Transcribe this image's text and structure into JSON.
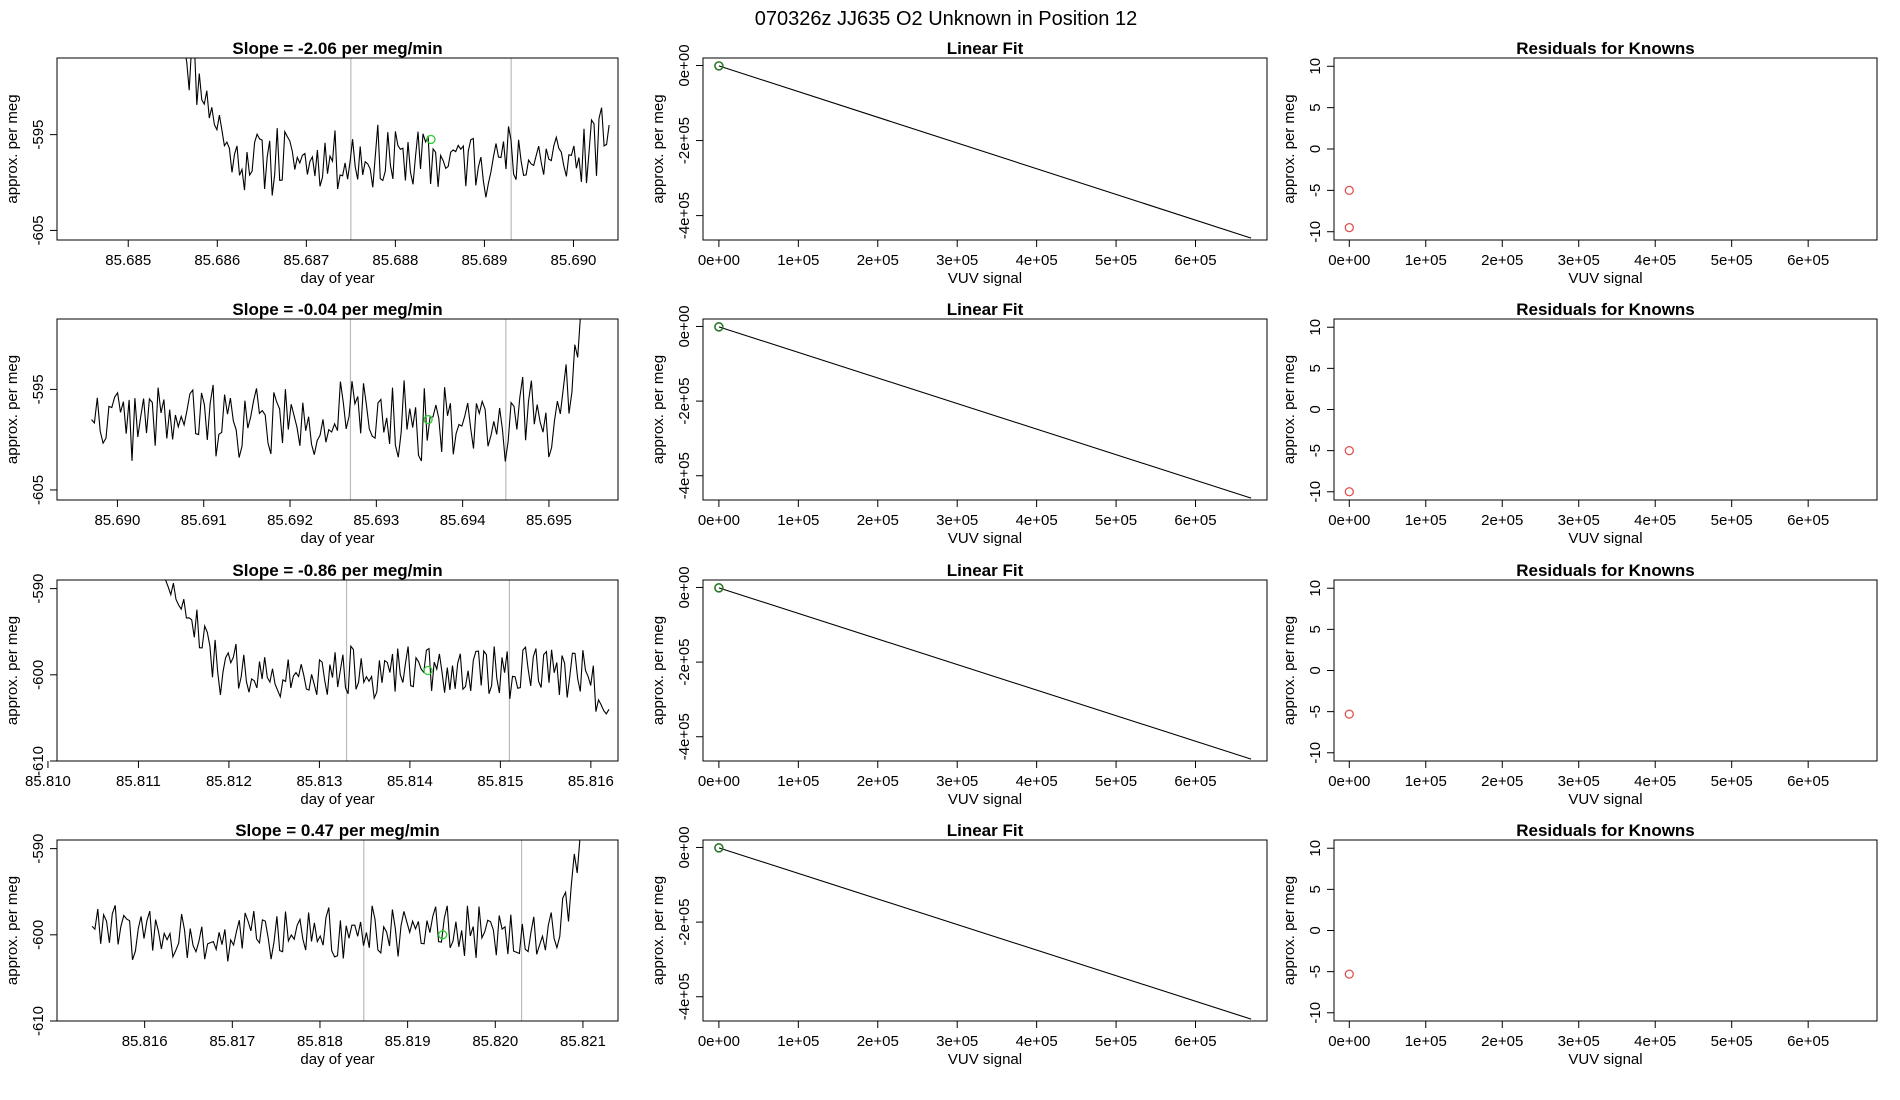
{
  "figure_title": "070326z      JJ635    O2 Unknown in Position  12",
  "colors": {
    "trace": "#000000",
    "marker_green": "#33cc33",
    "marker_red": "#e05050",
    "vline": "#bbbbbb",
    "frame": "#000000"
  },
  "chart_data": [
    {
      "type": "line",
      "row": 1,
      "panel": "time-series",
      "title": "Slope =  -2.06  per meg/min",
      "xlabel": "day of year",
      "ylabel": "approx. per meg",
      "xlim": [
        85.6842,
        85.6905
      ],
      "ylim": [
        -606,
        -587
      ],
      "xticks": [
        "85.685",
        "85.686",
        "85.687",
        "85.688",
        "85.689",
        "85.690"
      ],
      "yticks": [
        "-595",
        "-605"
      ],
      "vlines": [
        85.6875,
        85.6893
      ],
      "series_shape": {
        "start": 85.6856,
        "end": 85.6904,
        "first": -585,
        "level": -597.5,
        "noise": 3.0,
        "end_value": -594,
        "seed": 11
      },
      "marker": {
        "x": 85.6884,
        "y": -595.5
      }
    },
    {
      "type": "scatter",
      "row": 1,
      "panel": "linear-fit",
      "title": "Linear Fit",
      "xlabel": "VUV signal",
      "ylabel": "approx. per meg",
      "xlim": [
        -20000,
        690000
      ],
      "ylim": [
        -465000,
        20000
      ],
      "xticks": [
        "0e+00",
        "1e+05",
        "2e+05",
        "3e+05",
        "4e+05",
        "5e+05",
        "6e+05"
      ],
      "yticks": [
        "0e+00",
        "-2e+05",
        "-4e+05"
      ],
      "fit_line": [
        [
          0,
          -1000
        ],
        [
          670000,
          -460000
        ]
      ],
      "points": [
        [
          0,
          -1000
        ]
      ]
    },
    {
      "type": "scatter",
      "row": 1,
      "panel": "residuals",
      "title": "Residuals for Knowns",
      "xlabel": "VUV signal",
      "ylabel": "approx. per meg",
      "xlim": [
        -20000,
        690000
      ],
      "ylim": [
        -11,
        11
      ],
      "xticks": [
        "0e+00",
        "1e+05",
        "2e+05",
        "3e+05",
        "4e+05",
        "5e+05",
        "6e+05"
      ],
      "yticks": [
        "10",
        "5",
        "0",
        "-5",
        "-10"
      ],
      "points": [
        [
          0,
          -5
        ],
        [
          0,
          -9.5
        ]
      ]
    },
    {
      "type": "line",
      "row": 2,
      "panel": "time-series",
      "title": "Slope =  -0.04  per meg/min",
      "xlabel": "day of year",
      "ylabel": "approx. per meg",
      "xlim": [
        85.6893,
        85.6958
      ],
      "ylim": [
        -606,
        -588
      ],
      "xticks": [
        "85.690",
        "85.691",
        "85.692",
        "85.693",
        "85.694",
        "85.695"
      ],
      "yticks": [
        "-595",
        "-605"
      ],
      "vlines": [
        85.6927,
        85.6945
      ],
      "series_shape": {
        "start": 85.6897,
        "end": 85.6954,
        "first": -598,
        "level": -598,
        "noise": 3.2,
        "end_value": -588,
        "seed": 22
      },
      "marker": {
        "x": 85.6936,
        "y": -598
      }
    },
    {
      "type": "scatter",
      "row": 2,
      "panel": "linear-fit",
      "title": "Linear Fit",
      "xlabel": "VUV signal",
      "ylabel": "approx. per meg",
      "xlim": [
        -20000,
        690000
      ],
      "ylim": [
        -465000,
        20000
      ],
      "xticks": [
        "0e+00",
        "1e+05",
        "2e+05",
        "3e+05",
        "4e+05",
        "5e+05",
        "6e+05"
      ],
      "yticks": [
        "0e+00",
        "-2e+05",
        "-4e+05"
      ],
      "fit_line": [
        [
          0,
          -1000
        ],
        [
          670000,
          -460000
        ]
      ],
      "points": [
        [
          0,
          -1000
        ]
      ]
    },
    {
      "type": "scatter",
      "row": 2,
      "panel": "residuals",
      "title": "Residuals for Knowns",
      "xlabel": "VUV signal",
      "ylabel": "approx. per meg",
      "xlim": [
        -20000,
        690000
      ],
      "ylim": [
        -11,
        11
      ],
      "xticks": [
        "0e+00",
        "1e+05",
        "2e+05",
        "3e+05",
        "4e+05",
        "5e+05",
        "6e+05"
      ],
      "yticks": [
        "10",
        "5",
        "0",
        "-5",
        "-10"
      ],
      "points": [
        [
          0,
          -5
        ],
        [
          0,
          -10
        ]
      ]
    },
    {
      "type": "line",
      "row": 3,
      "panel": "time-series",
      "title": "Slope =  -0.86  per meg/min",
      "xlabel": "day of year",
      "ylabel": "approx. per meg",
      "xlim": [
        85.8101,
        85.8163
      ],
      "ylim": [
        -610,
        -589
      ],
      "xticks": [
        "85.810",
        "85.811",
        "85.812",
        "85.813",
        "85.814",
        "85.815",
        "85.816"
      ],
      "yticks": [
        "-590",
        "-600",
        "-610"
      ],
      "vlines": [
        85.8133,
        85.8151
      ],
      "series_shape": {
        "start": 85.8113,
        "end": 85.8162,
        "first": -589,
        "level": -599.5,
        "noise": 2.6,
        "end_value": -604,
        "seed": 33
      },
      "marker": {
        "x": 85.8142,
        "y": -599.5
      }
    },
    {
      "type": "scatter",
      "row": 3,
      "panel": "linear-fit",
      "title": "Linear Fit",
      "xlabel": "VUV signal",
      "ylabel": "approx. per meg",
      "xlim": [
        -20000,
        690000
      ],
      "ylim": [
        -465000,
        20000
      ],
      "xticks": [
        "0e+00",
        "1e+05",
        "2e+05",
        "3e+05",
        "4e+05",
        "5e+05",
        "6e+05"
      ],
      "yticks": [
        "0e+00",
        "-2e+05",
        "-4e+05"
      ],
      "fit_line": [
        [
          0,
          -1000
        ],
        [
          670000,
          -460000
        ]
      ],
      "points": [
        [
          0,
          -1000
        ]
      ]
    },
    {
      "type": "scatter",
      "row": 3,
      "panel": "residuals",
      "title": "Residuals for Knowns",
      "xlabel": "VUV signal",
      "ylabel": "approx. per meg",
      "xlim": [
        -20000,
        690000
      ],
      "ylim": [
        -11,
        11
      ],
      "xticks": [
        "0e+00",
        "1e+05",
        "2e+05",
        "3e+05",
        "4e+05",
        "5e+05",
        "6e+05"
      ],
      "yticks": [
        "10",
        "5",
        "0",
        "-5",
        "-10"
      ],
      "points": [
        [
          0,
          -5.3
        ]
      ]
    },
    {
      "type": "line",
      "row": 4,
      "panel": "time-series",
      "title": "Slope =  0.47  per meg/min",
      "xlabel": "day of year",
      "ylabel": "approx. per meg",
      "xlim": [
        85.815,
        85.8214
      ],
      "ylim": [
        -610,
        -589
      ],
      "xticks": [
        "85.816",
        "85.817",
        "85.818",
        "85.819",
        "85.820",
        "85.821"
      ],
      "yticks": [
        "-590",
        "-600",
        "-610"
      ],
      "vlines": [
        85.8185,
        85.8203
      ],
      "series_shape": {
        "start": 85.8154,
        "end": 85.821,
        "first": -599,
        "level": -600,
        "noise": 2.6,
        "end_value": -589,
        "seed": 44
      },
      "marker": {
        "x": 85.8194,
        "y": -600
      }
    },
    {
      "type": "scatter",
      "row": 4,
      "panel": "linear-fit",
      "title": "Linear Fit",
      "xlabel": "VUV signal",
      "ylabel": "approx. per meg",
      "xlim": [
        -20000,
        690000
      ],
      "ylim": [
        -465000,
        20000
      ],
      "xticks": [
        "0e+00",
        "1e+05",
        "2e+05",
        "3e+05",
        "4e+05",
        "5e+05",
        "6e+05"
      ],
      "yticks": [
        "0e+00",
        "-2e+05",
        "-4e+05"
      ],
      "fit_line": [
        [
          0,
          -1000
        ],
        [
          670000,
          -460000
        ]
      ],
      "points": [
        [
          0,
          -1000
        ]
      ]
    },
    {
      "type": "scatter",
      "row": 4,
      "panel": "residuals",
      "title": "Residuals for Knowns",
      "xlabel": "VUV signal",
      "ylabel": "approx. per meg",
      "xlim": [
        -20000,
        690000
      ],
      "ylim": [
        -11,
        11
      ],
      "xticks": [
        "0e+00",
        "1e+05",
        "2e+05",
        "3e+05",
        "4e+05",
        "5e+05",
        "6e+05"
      ],
      "yticks": [
        "10",
        "5",
        "0",
        "-5",
        "-10"
      ],
      "points": [
        [
          0,
          -5.3
        ]
      ]
    }
  ]
}
